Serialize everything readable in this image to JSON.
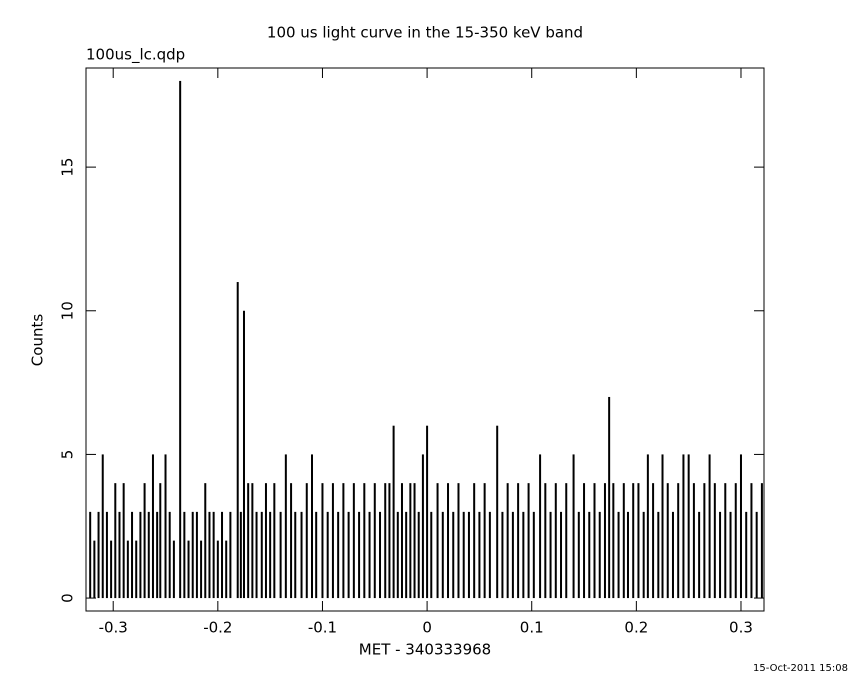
{
  "chart_data": {
    "type": "bar",
    "title": "100 us light curve in the 15-350 keV band",
    "subtitle": "100us_lc.qdp",
    "x_label": "MET - 340333968",
    "y_label": "Counts",
    "footer": "15-Oct-2011 15:08",
    "color": "#000000",
    "xlim": [
      -0.326,
      0.322
    ],
    "ylim": [
      -0.45,
      18.45
    ],
    "xticks": [
      -0.3,
      -0.2,
      -0.1,
      0,
      0.1,
      0.2,
      0.3
    ],
    "yticks": [
      0,
      5,
      10,
      15
    ],
    "x": [
      -0.322,
      -0.318,
      -0.314,
      -0.31,
      -0.306,
      -0.302,
      -0.298,
      -0.294,
      -0.29,
      -0.286,
      -0.282,
      -0.278,
      -0.274,
      -0.27,
      -0.266,
      -0.262,
      -0.258,
      -0.255,
      -0.25,
      -0.246,
      -0.242,
      -0.236,
      -0.232,
      -0.228,
      -0.224,
      -0.22,
      -0.216,
      -0.212,
      -0.208,
      -0.204,
      -0.2,
      -0.196,
      -0.192,
      -0.188,
      -0.181,
      -0.178,
      -0.175,
      -0.171,
      -0.167,
      -0.163,
      -0.158,
      -0.154,
      -0.15,
      -0.146,
      -0.14,
      -0.135,
      -0.13,
      -0.126,
      -0.12,
      -0.115,
      -0.11,
      -0.106,
      -0.1,
      -0.095,
      -0.09,
      -0.085,
      -0.08,
      -0.075,
      -0.07,
      -0.065,
      -0.06,
      -0.055,
      -0.05,
      -0.045,
      -0.04,
      -0.036,
      -0.032,
      -0.028,
      -0.024,
      -0.02,
      -0.016,
      -0.012,
      -0.008,
      -0.004,
      0,
      0.004,
      0.01,
      0.015,
      0.02,
      0.025,
      0.03,
      0.035,
      0.04,
      0.045,
      0.05,
      0.055,
      0.06,
      0.067,
      0.072,
      0.077,
      0.082,
      0.087,
      0.092,
      0.097,
      0.102,
      0.108,
      0.113,
      0.118,
      0.123,
      0.128,
      0.133,
      0.14,
      0.145,
      0.15,
      0.155,
      0.16,
      0.165,
      0.17,
      0.174,
      0.178,
      0.183,
      0.188,
      0.192,
      0.197,
      0.202,
      0.207,
      0.211,
      0.216,
      0.221,
      0.225,
      0.23,
      0.235,
      0.24,
      0.245,
      0.25,
      0.255,
      0.26,
      0.265,
      0.27,
      0.275,
      0.28,
      0.285,
      0.29,
      0.295,
      0.3,
      0.305,
      0.31,
      0.315,
      0.32
    ],
    "values": [
      3,
      2,
      3,
      5,
      3,
      2,
      4,
      3,
      4,
      2,
      3,
      2,
      3,
      4,
      3,
      5,
      3,
      4,
      5,
      3,
      2,
      18,
      3,
      2,
      3,
      3,
      2,
      4,
      3,
      3,
      2,
      3,
      2,
      3,
      11,
      3,
      10,
      4,
      4,
      3,
      3,
      4,
      3,
      4,
      3,
      5,
      4,
      3,
      3,
      4,
      5,
      3,
      4,
      3,
      4,
      3,
      4,
      3,
      4,
      3,
      4,
      3,
      4,
      3,
      4,
      4,
      6,
      3,
      4,
      3,
      4,
      4,
      3,
      5,
      6,
      3,
      4,
      3,
      4,
      3,
      4,
      3,
      3,
      4,
      3,
      4,
      3,
      6,
      3,
      4,
      3,
      4,
      3,
      4,
      3,
      5,
      4,
      3,
      4,
      3,
      4,
      5,
      3,
      4,
      3,
      4,
      3,
      4,
      7,
      4,
      3,
      4,
      3,
      4,
      4,
      3,
      5,
      4,
      3,
      5,
      4,
      3,
      4,
      5,
      5,
      4,
      3,
      4,
      5,
      4,
      3,
      4,
      3,
      4,
      5,
      3,
      4,
      3,
      4
    ]
  }
}
